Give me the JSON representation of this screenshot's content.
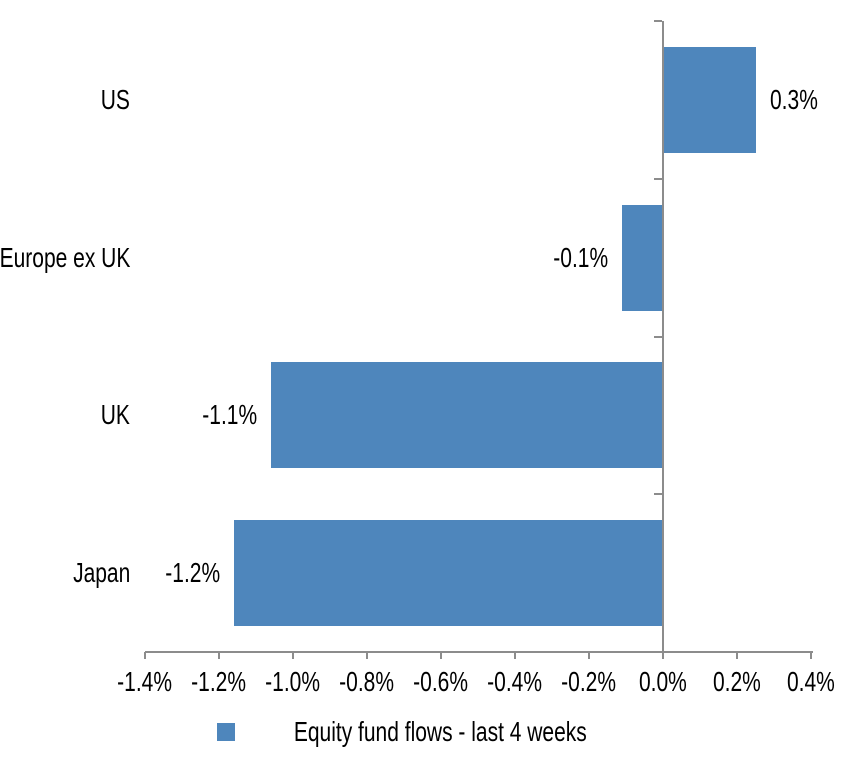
{
  "chart_data": {
    "type": "bar",
    "orientation": "horizontal",
    "title": "",
    "categories": [
      "US",
      "Europe ex UK",
      "UK",
      "Japan"
    ],
    "series": [
      {
        "name": "Equity fund flows - last 4 weeks",
        "values": [
          0.3,
          -0.1,
          -1.1,
          -1.2
        ]
      }
    ],
    "data_labels": [
      "0.3%",
      "-0.1%",
      "-1.1%",
      "-1.2%"
    ],
    "plot_values_pct": [
      0.25,
      -0.11,
      -1.06,
      -1.16
    ],
    "unit": "%",
    "xlim": [
      -1.4,
      0.4
    ],
    "x_tick_values": [
      -1.4,
      -1.2,
      -1.0,
      -0.8,
      -0.6,
      -0.4,
      -0.2,
      0.0,
      0.2,
      0.4
    ],
    "x_tick_labels": [
      "-1.4%",
      "-1.2%",
      "-1.0%",
      "-0.8%",
      "-0.6%",
      "-0.4%",
      "-0.2%",
      "0.0%",
      "0.2%",
      "0.4%"
    ],
    "legend_position": "bottom",
    "grid": false,
    "colors": {
      "bar": "#4E86BC",
      "axis": "#8C8C8C",
      "text": "#000000",
      "background": "#FFFFFF"
    }
  }
}
